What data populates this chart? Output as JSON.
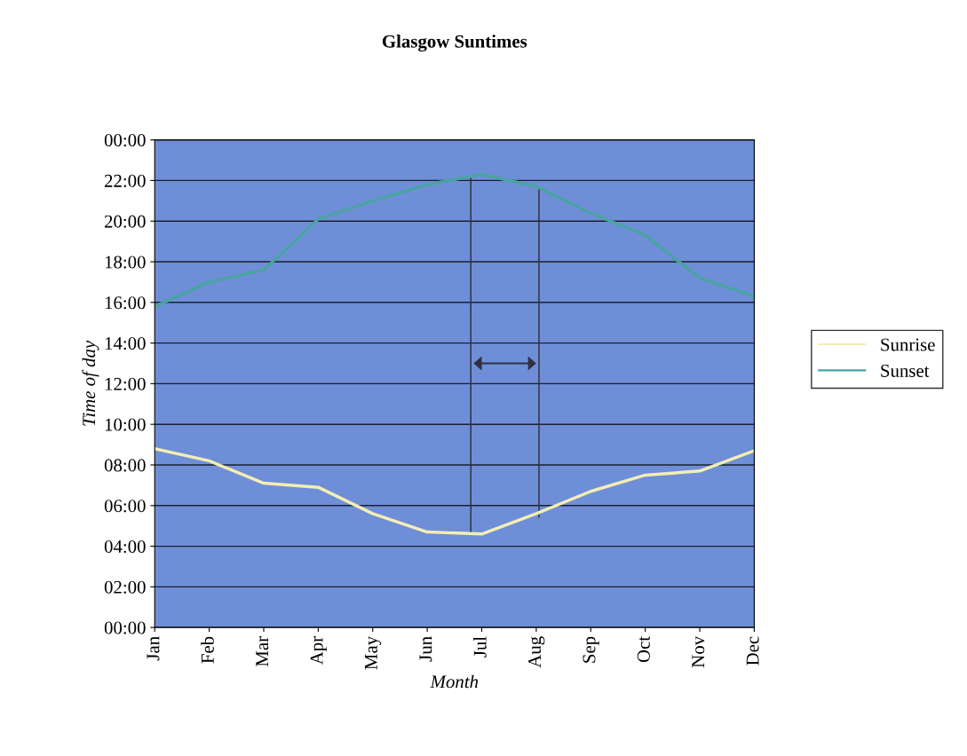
{
  "chart_data": {
    "type": "line",
    "title": "Glasgow Suntimes",
    "xlabel": "Month",
    "ylabel": "Time of day",
    "categories": [
      "Jan",
      "Feb",
      "Mar",
      "Apr",
      "May",
      "Jun",
      "Jul",
      "Aug",
      "Sep",
      "Oct",
      "Nov",
      "Dec"
    ],
    "series": [
      {
        "name": "Sunrise",
        "color": "#f2eeb4",
        "values": [
          8.8,
          8.2,
          7.1,
          6.9,
          5.6,
          4.7,
          4.6,
          5.6,
          6.7,
          7.5,
          7.7,
          8.7
        ]
      },
      {
        "name": "Sunset",
        "color": "#4aa3a3",
        "values": [
          15.8,
          17.0,
          17.6,
          20.1,
          21.0,
          21.8,
          22.3,
          21.7,
          20.4,
          19.3,
          17.2,
          16.3
        ]
      }
    ],
    "ylim": [
      0,
      24
    ],
    "yticks": [
      {
        "value": 0,
        "label": "00:00"
      },
      {
        "value": 2,
        "label": "02:00"
      },
      {
        "value": 4,
        "label": "04:00"
      },
      {
        "value": 6,
        "label": "06:00"
      },
      {
        "value": 8,
        "label": "08:00"
      },
      {
        "value": 10,
        "label": "10:00"
      },
      {
        "value": 12,
        "label": "12:00"
      },
      {
        "value": 14,
        "label": "14:00"
      },
      {
        "value": 16,
        "label": "16:00"
      },
      {
        "value": 18,
        "label": "18:00"
      },
      {
        "value": 20,
        "label": "20:00"
      },
      {
        "value": 22,
        "label": "22:00"
      },
      {
        "value": 24,
        "label": "00:00"
      }
    ],
    "grid": "y",
    "legend": "right",
    "marker": "none",
    "line_style": "solid"
  }
}
